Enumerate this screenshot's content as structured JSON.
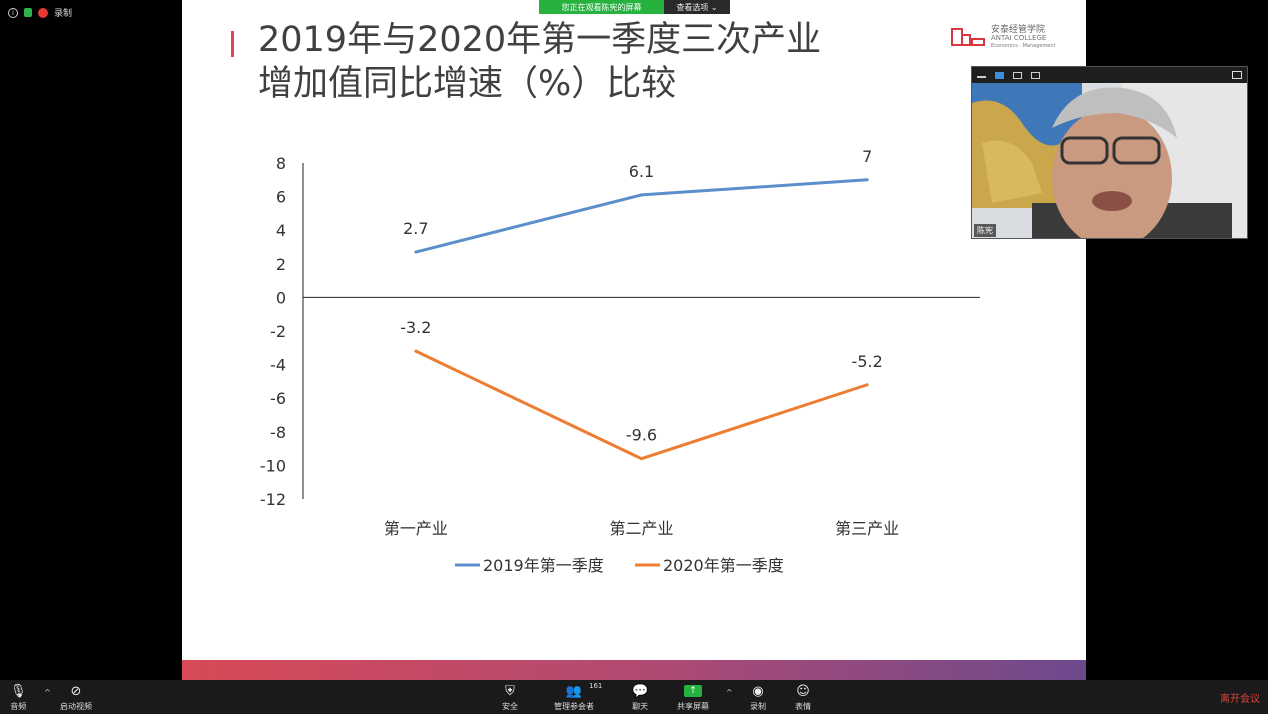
{
  "status": {
    "recording_label": "录制"
  },
  "share_banner": {
    "watching": "您正在观看陈宪的屏幕",
    "options": "查看选项 ⌄"
  },
  "slide": {
    "title_line1": "2019年与2020年第一季度三次产业",
    "title_line2": "增加值同比增速（%）比较",
    "logo_cn": "安泰经管学院",
    "logo_en": "ANTAI COLLEGE",
    "logo_en2": "Economics · Management"
  },
  "chart_data": {
    "type": "line",
    "categories": [
      "第一产业",
      "第二产业",
      "第三产业"
    ],
    "series": [
      {
        "name": "2019年第一季度",
        "values": [
          2.7,
          6.1,
          7
        ],
        "color": "#5b8fc9"
      },
      {
        "name": "2020年第一季度",
        "values": [
          -3.2,
          -9.6,
          -5.2
        ],
        "color": "#ec7d31"
      }
    ],
    "ylim": [
      -12,
      8
    ],
    "yticks": [
      8,
      6,
      4,
      2,
      0,
      -2,
      -4,
      -6,
      -8,
      -10,
      -12
    ],
    "legend": "bottom",
    "grid": false
  },
  "webcam": {
    "name": "陈宪"
  },
  "toolbar": {
    "audio": "音频",
    "video": "启动视频",
    "security": "安全",
    "participants": "管理参会者",
    "participant_count": "161",
    "chat": "聊天",
    "share": "共享屏幕",
    "record": "录制",
    "reactions": "表情",
    "leave": "离开会议"
  }
}
